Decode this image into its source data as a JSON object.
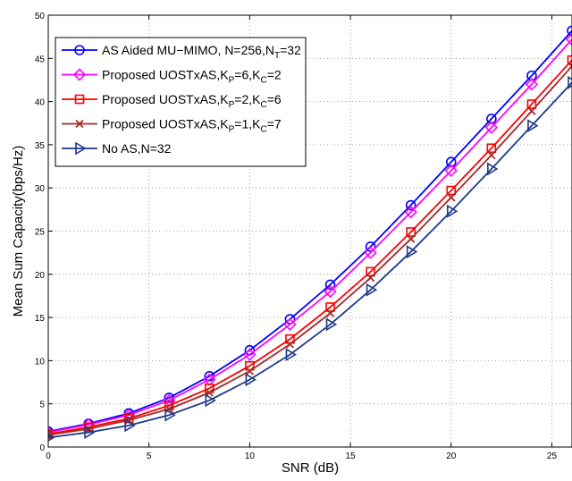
{
  "chart_data": {
    "type": "line",
    "xlabel": "SNR (dB)",
    "ylabel": "Mean Sum Capacity(bps/Hz)",
    "xlim": [
      0,
      26
    ],
    "ylim": [
      0,
      50
    ],
    "xticks": [
      0,
      5,
      10,
      15,
      20,
      25
    ],
    "yticks": [
      0,
      5,
      10,
      15,
      20,
      25,
      30,
      35,
      40,
      45,
      50
    ],
    "grid": true,
    "grid_style": "dotted",
    "legend_position": "top-left",
    "x": [
      0,
      2,
      4,
      6,
      8,
      10,
      12,
      14,
      16,
      18,
      20,
      22,
      24,
      26
    ],
    "series": [
      {
        "legend": {
          "main": "AS Aided MU−MIMO, N=256,N",
          "sub": "T",
          "tail": "=32"
        },
        "color": "#0000ff",
        "marker": "circle",
        "values": [
          1.8,
          2.7,
          3.9,
          5.7,
          8.2,
          11.2,
          14.8,
          18.8,
          23.2,
          28.0,
          33.0,
          38.0,
          43.0,
          48.2
        ]
      },
      {
        "legend": {
          "main": "Proposed UOSTxAS,K",
          "sub": "P",
          "mid": "=6,K",
          "sub2": "C",
          "tail": "=2"
        },
        "color": "#ff00ff",
        "marker": "diamond",
        "values": [
          1.7,
          2.6,
          3.7,
          5.4,
          7.8,
          10.7,
          14.2,
          18.0,
          22.5,
          27.2,
          32.0,
          37.0,
          42.0,
          47.2
        ]
      },
      {
        "legend": {
          "main": "Proposed UOSTxAS,K",
          "sub": "P",
          "mid": "=2,K",
          "sub2": "C",
          "tail": "=6"
        },
        "color": "#ff0000",
        "marker": "square",
        "values": [
          1.5,
          2.3,
          3.3,
          4.8,
          6.8,
          9.4,
          12.5,
          16.2,
          20.3,
          24.9,
          29.7,
          34.6,
          39.7,
          44.8
        ]
      },
      {
        "legend": {
          "main": "Proposed UOSTxAS,K",
          "sub": "P",
          "mid": "=1,K",
          "sub2": "C",
          "tail": "=7"
        },
        "color": "#a52a2a",
        "marker": "x",
        "values": [
          1.4,
          2.1,
          3.1,
          4.4,
          6.3,
          8.8,
          11.9,
          15.5,
          19.6,
          24.1,
          28.9,
          33.8,
          38.9,
          44.1
        ]
      },
      {
        "legend": {
          "main": "No AS,N=32",
          "sub": "",
          "tail": ""
        },
        "color": "#1f3a8a",
        "marker": "triangle-right",
        "values": [
          1.1,
          1.7,
          2.5,
          3.7,
          5.4,
          7.8,
          10.7,
          14.2,
          18.2,
          22.6,
          27.3,
          32.2,
          37.2,
          42.2
        ]
      }
    ]
  }
}
